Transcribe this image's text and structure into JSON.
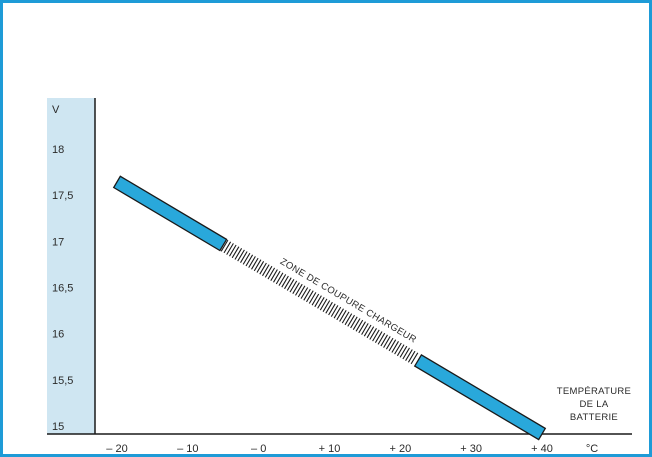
{
  "chart_data": {
    "type": "line",
    "title": "",
    "xlabel": "",
    "ylabel": "",
    "y_unit": "V",
    "x_unit": "°C",
    "x_ticks": [
      {
        "value": -20,
        "label": "– 20"
      },
      {
        "value": -10,
        "label": "– 10"
      },
      {
        "value": 0,
        "label": "– 0"
      },
      {
        "value": 10,
        "label": "+ 10"
      },
      {
        "value": 20,
        "label": "+ 20"
      },
      {
        "value": 30,
        "label": "+ 30"
      },
      {
        "value": 40,
        "label": "+ 40"
      }
    ],
    "y_ticks": [
      {
        "value": 18,
        "label": "18"
      },
      {
        "value": 17.5,
        "label": "17,5"
      },
      {
        "value": 17,
        "label": "17"
      },
      {
        "value": 16.5,
        "label": "16,5"
      },
      {
        "value": 16,
        "label": "16"
      },
      {
        "value": 15.5,
        "label": "15,5"
      },
      {
        "value": 15,
        "label": "15"
      }
    ],
    "xlim": [
      -21,
      44
    ],
    "ylim": [
      15,
      18.4
    ],
    "grid": false,
    "series": [
      {
        "points": [
          {
            "x": -20,
            "y": 17.73
          },
          {
            "x": 40,
            "y": 15.0
          }
        ],
        "segments": [
          {
            "style": "solid",
            "from": -20,
            "to": -5
          },
          {
            "style": "hatched",
            "from": -5,
            "to": 22.5
          },
          {
            "style": "solid",
            "from": 22.5,
            "to": 40
          }
        ]
      }
    ],
    "annotations": [
      {
        "text": "ZONE DE COUPURE CHARGEUR"
      },
      {
        "lines": [
          "TEMPÉRATURE",
          "DE LA",
          "BATTERIE"
        ]
      }
    ],
    "colors": {
      "frame": "#1e9bd7",
      "band": "#29a8db",
      "axis_strip": "#cfe6f2",
      "ink": "#1a1a1a"
    }
  }
}
